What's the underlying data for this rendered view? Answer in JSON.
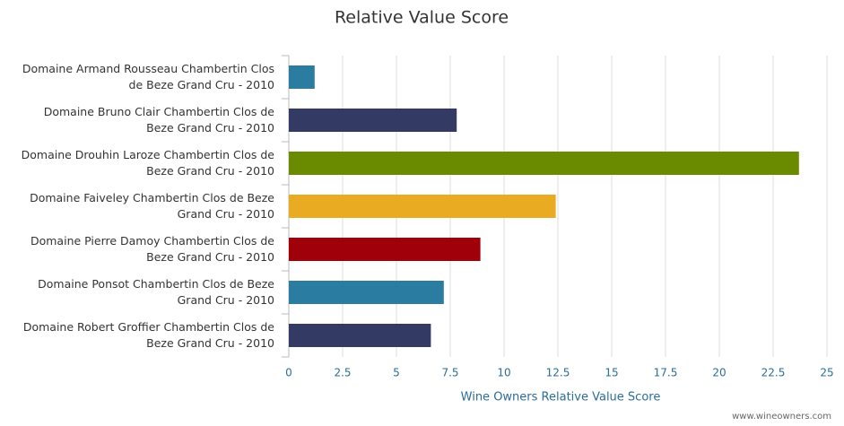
{
  "chart_data": {
    "type": "bar",
    "orientation": "horizontal",
    "title": "Relative Value Score",
    "x_label": "Wine Owners Relative Value Score",
    "credit": "www.wineowners.com",
    "categories": [
      "Domaine Armand Rousseau Chambertin Clos de Beze Grand Cru - 2010",
      "Domaine Bruno Clair Chambertin Clos de Beze Grand Cru - 2010",
      "Domaine Drouhin Laroze Chambertin Clos de Beze Grand Cru - 2010",
      "Domaine Faiveley Chambertin Clos de Beze Grand Cru - 2010",
      "Domaine Pierre Damoy Chambertin Clos de Beze Grand Cru - 2010",
      "Domaine Ponsot Chambertin Clos de Beze Grand Cru - 2010",
      "Domaine Robert Groffier Chambertin Clos de Beze Grand Cru - 2010"
    ],
    "values": [
      1.2,
      7.8,
      23.7,
      12.4,
      8.9,
      7.2,
      6.6
    ],
    "colors": [
      "#2a7ca0",
      "#333a63",
      "#6a8a00",
      "#e8ab22",
      "#a0000a",
      "#2a7ca0",
      "#333a63"
    ],
    "xlim": [
      0,
      25
    ],
    "xticks": [
      0,
      2.5,
      5,
      7.5,
      10,
      12.5,
      15,
      17.5,
      20,
      22.5,
      25
    ],
    "grid": true
  }
}
